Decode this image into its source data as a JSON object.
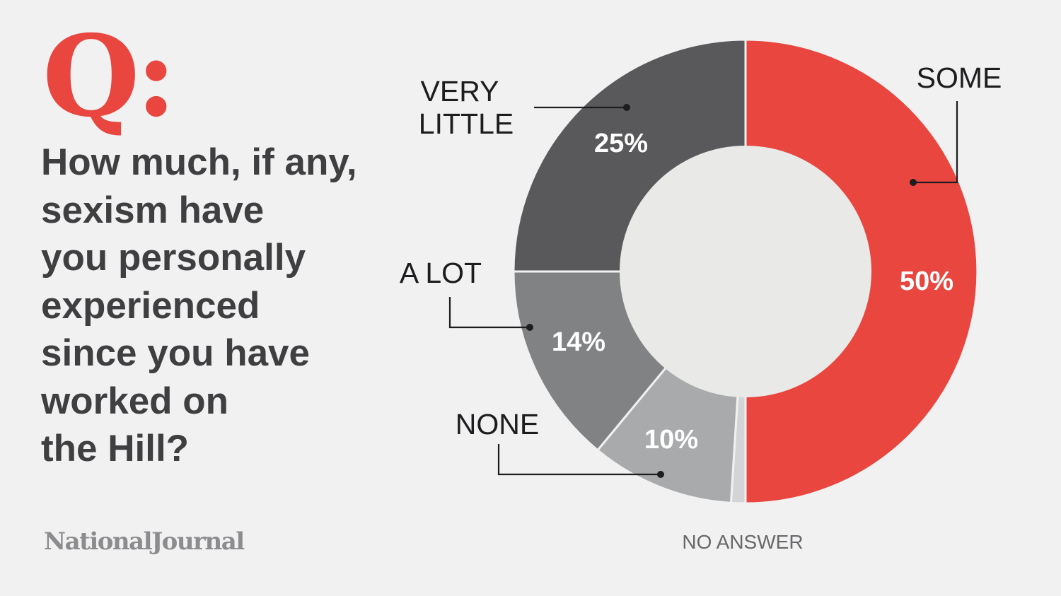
{
  "logo_mark": "Q:",
  "question": "How much, if any,\nsexism have\nyou personally\nexperienced\nsince you have\nworked on\nthe Hill?",
  "brand": "NationalJournal",
  "colors": {
    "background": "#f1f1f2",
    "accent": "#e8463f",
    "text": "#3f3f41",
    "center": "#e9e9e8"
  },
  "chart_data": {
    "type": "pie",
    "style": "donut",
    "title": "",
    "slices": [
      {
        "label": "SOME",
        "value": 50,
        "value_label": "50%",
        "color": "#e8463f"
      },
      {
        "label": "NO ANSWER",
        "value": 1,
        "value_label": "",
        "color": "#d3d4d6"
      },
      {
        "label": "NONE",
        "value": 10,
        "value_label": "10%",
        "color": "#a9aaac"
      },
      {
        "label": "A LOT",
        "value": 14,
        "value_label": "14%",
        "color": "#818284"
      },
      {
        "label": "VERY LITTLE",
        "value": 25,
        "value_label": "25%",
        "color": "#59595b"
      }
    ]
  }
}
